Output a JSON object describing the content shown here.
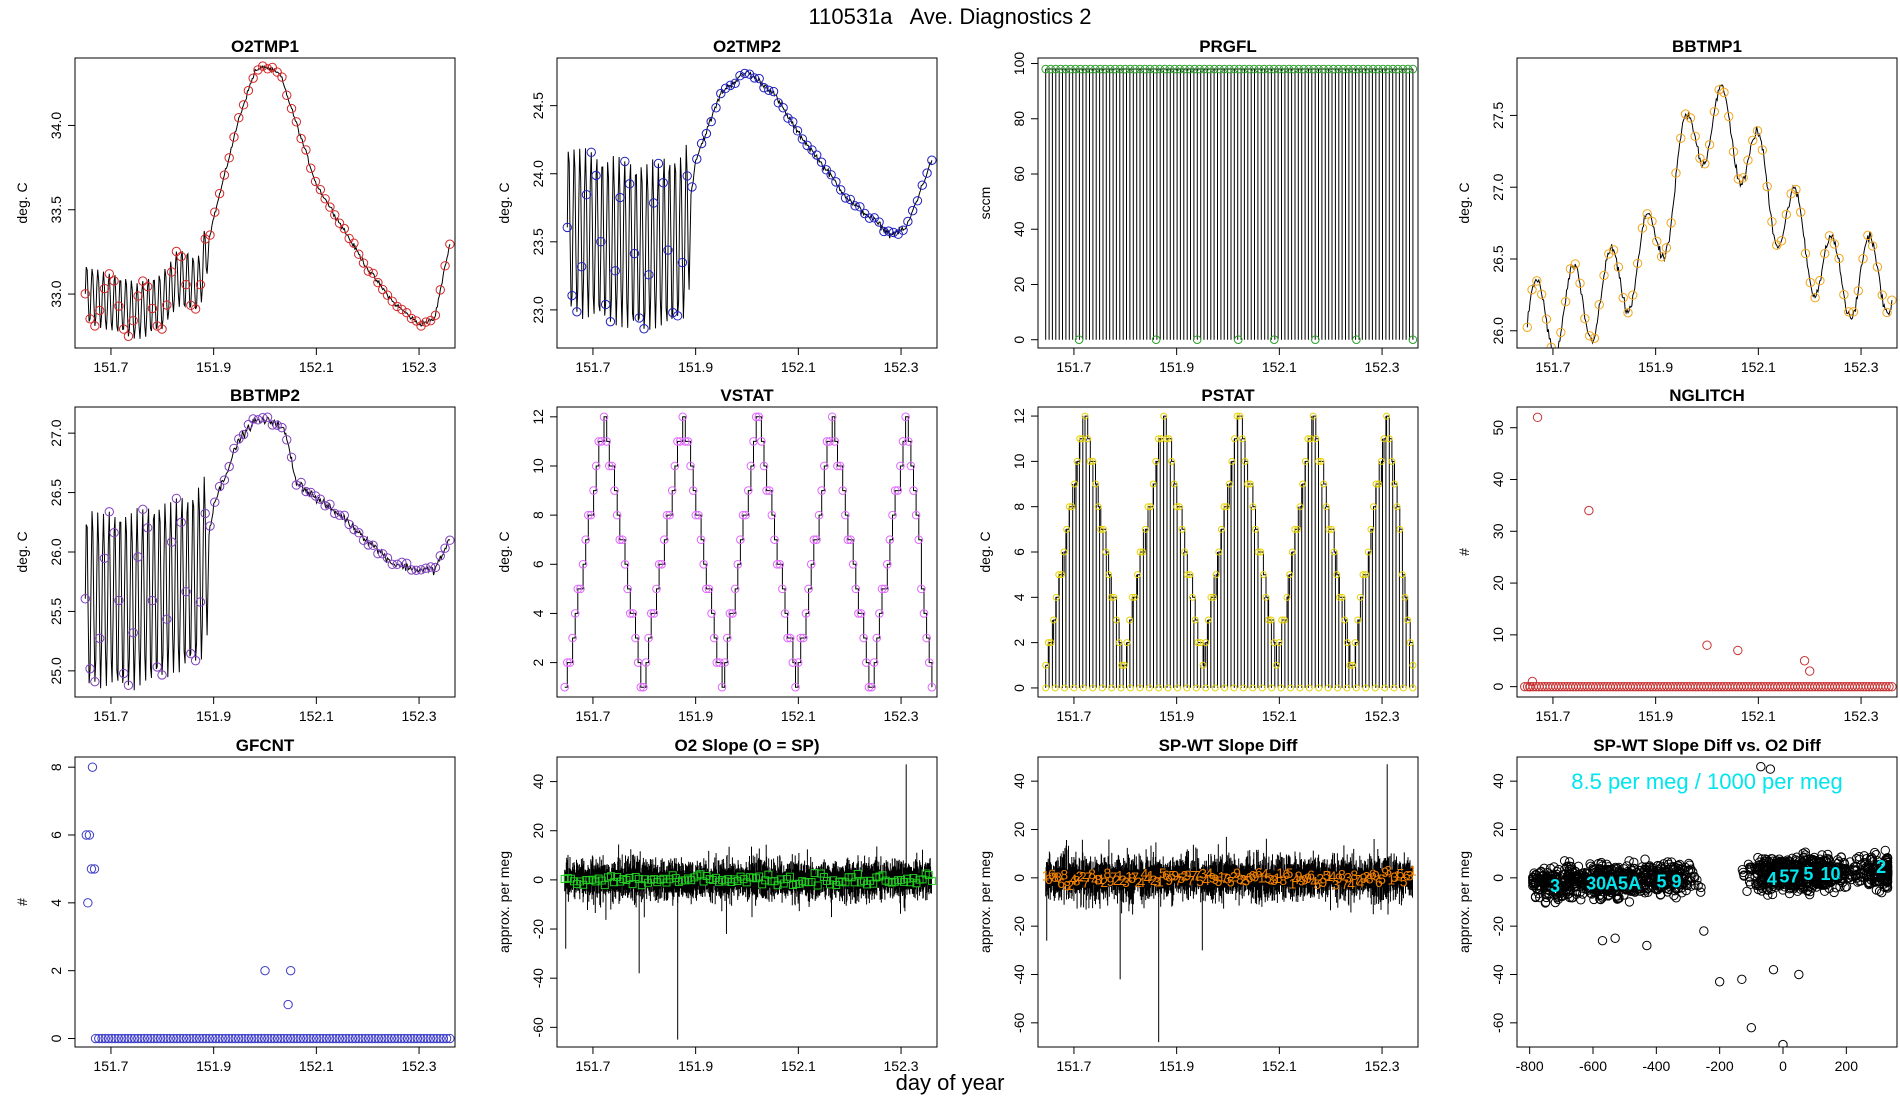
{
  "figure": {
    "title": "110531a   Ave. Diagnostics 2",
    "xlabel": "day of year"
  },
  "chart_data": [
    {
      "type": "line",
      "title": "O2TMP1",
      "ylabel": "deg. C",
      "color": "#d62728",
      "xlim": [
        151.63,
        152.37
      ],
      "ylim": [
        32.68,
        34.4
      ],
      "xticks": [
        "151.7",
        "151.9",
        "152.1",
        "152.3"
      ],
      "yticks": [
        "33.0",
        "33.5",
        "34.0"
      ],
      "series_knots": {
        "x": [
          151.65,
          151.7,
          151.75,
          151.8,
          151.83,
          151.87,
          151.9,
          151.95,
          151.98,
          152.0,
          152.03,
          152.1,
          152.15,
          152.2,
          152.25,
          152.3,
          152.33,
          152.36
        ],
        "y": [
          33.0,
          32.95,
          32.9,
          32.95,
          33.1,
          33.05,
          33.45,
          34.05,
          34.32,
          34.35,
          34.3,
          33.65,
          33.4,
          33.15,
          32.95,
          32.82,
          32.85,
          33.3
        ]
      },
      "osc": {
        "until": 151.89,
        "amp": 0.17,
        "n": 22
      },
      "noise": 0.015
    },
    {
      "type": "line",
      "title": "O2TMP2",
      "ylabel": "deg. C",
      "color": "#1f1fbf",
      "xlim": [
        151.63,
        152.37
      ],
      "ylim": [
        22.72,
        24.85
      ],
      "xticks": [
        "151.7",
        "151.9",
        "152.1",
        "152.3"
      ],
      "yticks": [
        "23.0",
        "23.5",
        "24.0",
        "24.5"
      ],
      "series_knots": {
        "x": [
          151.65,
          151.7,
          151.75,
          151.8,
          151.85,
          151.88,
          151.9,
          151.95,
          152.0,
          152.05,
          152.1,
          152.15,
          152.2,
          152.25,
          152.28,
          152.31,
          152.36
        ],
        "y": [
          23.6,
          23.55,
          23.5,
          23.45,
          23.5,
          23.55,
          24.1,
          24.6,
          24.75,
          24.6,
          24.3,
          24.05,
          23.8,
          23.65,
          23.55,
          23.6,
          24.1
        ]
      },
      "osc": {
        "until": 151.89,
        "amp": 0.62,
        "n": 22
      },
      "noise": 0.02
    },
    {
      "type": "pulse",
      "title": "PRGFL",
      "ylabel": "sccm",
      "color": "#2ca02c",
      "xlim": [
        151.63,
        152.37
      ],
      "ylim": [
        -3,
        102
      ],
      "xticks": [
        "151.7",
        "151.9",
        "152.1",
        "152.3"
      ],
      "yticks": [
        "0",
        "20",
        "40",
        "60",
        "80",
        "100"
      ],
      "high": 98,
      "low": 0,
      "npulses": 110,
      "marker_lows": [
        151.71,
        151.86,
        151.94,
        152.02,
        152.09,
        152.17,
        152.25,
        152.36
      ]
    },
    {
      "type": "line",
      "title": "BBTMP1",
      "ylabel": "deg. C",
      "color": "#f2a51a",
      "xlim": [
        151.63,
        152.37
      ],
      "ylim": [
        25.88,
        27.9
      ],
      "xticks": [
        "151.7",
        "151.9",
        "152.1",
        "152.3"
      ],
      "yticks": [
        "26.0",
        "26.5",
        "27.0",
        "27.5"
      ],
      "series_knots": {
        "x": [
          151.65,
          151.8,
          151.9,
          151.98,
          152.05,
          152.15,
          152.25,
          152.36
        ],
        "y": [
          26.05,
          26.25,
          26.6,
          27.45,
          27.4,
          26.8,
          26.35,
          26.4
        ]
      },
      "osc": {
        "until": 152.37,
        "amp": 0.28,
        "n": 10
      },
      "noise": 0.03
    },
    {
      "type": "line",
      "title": "BBTMP2",
      "ylabel": "deg. C",
      "color": "#7f3fbf",
      "xlim": [
        151.63,
        152.37
      ],
      "ylim": [
        24.78,
        27.22
      ],
      "xticks": [
        "151.7",
        "151.9",
        "152.1",
        "152.3"
      ],
      "yticks": [
        "25.0",
        "25.5",
        "26.0",
        "26.5",
        "27.0"
      ],
      "series_knots": {
        "x": [
          151.65,
          151.75,
          151.85,
          151.88,
          151.9,
          151.95,
          151.98,
          152.02,
          152.04,
          152.06,
          152.1,
          152.15,
          152.2,
          152.25,
          152.3,
          152.33,
          152.36
        ],
        "y": [
          25.6,
          25.6,
          25.75,
          25.85,
          26.4,
          26.95,
          27.1,
          27.1,
          27.0,
          26.6,
          26.45,
          26.3,
          26.1,
          25.9,
          25.85,
          25.85,
          26.1
        ]
      },
      "osc": {
        "until": 151.89,
        "amp": 0.75,
        "n": 22
      },
      "noise": 0.025
    },
    {
      "type": "step",
      "title": "VSTAT",
      "ylabel": "deg. C",
      "color": "#e066ff",
      "xlim": [
        151.63,
        152.37
      ],
      "ylim": [
        0.6,
        12.4
      ],
      "xticks": [
        "151.7",
        "151.9",
        "152.1",
        "152.3"
      ],
      "yticks": [
        "2",
        "4",
        "6",
        "8",
        "10",
        "12"
      ],
      "peaks": [
        151.72,
        151.875,
        152.02,
        152.165,
        152.31
      ],
      "troughs": [
        151.645,
        151.795,
        151.95,
        152.095,
        152.24,
        152.36
      ],
      "max": 12,
      "min": 1
    },
    {
      "type": "step-pulse",
      "title": "PSTAT",
      "ylabel": "deg. C",
      "color": "#e8d200",
      "xlim": [
        151.63,
        152.37
      ],
      "ylim": [
        -0.4,
        12.4
      ],
      "xticks": [
        "151.7",
        "151.9",
        "152.1",
        "152.3"
      ],
      "yticks": [
        "0",
        "2",
        "4",
        "6",
        "8",
        "10",
        "12"
      ],
      "peaks": [
        151.72,
        151.875,
        152.02,
        152.165,
        152.31
      ],
      "troughs": [
        151.645,
        151.795,
        151.95,
        152.095,
        152.24,
        152.36
      ],
      "max": 12,
      "min": 1,
      "npulses": 110
    },
    {
      "type": "scatter",
      "title": "NGLITCH",
      "ylabel": "#",
      "color": "#c83232",
      "xlim": [
        151.63,
        152.37
      ],
      "ylim": [
        -2,
        54
      ],
      "xticks": [
        "151.7",
        "151.9",
        "152.1",
        "152.3"
      ],
      "yticks": [
        "0",
        "10",
        "20",
        "30",
        "40",
        "50"
      ],
      "baseline": 0,
      "x_range": [
        151.645,
        152.36
      ],
      "npoints": 130,
      "points": [
        [
          151.655,
          0
        ],
        [
          151.66,
          1
        ],
        [
          151.67,
          52
        ],
        [
          151.77,
          34
        ],
        [
          152.0,
          8
        ],
        [
          152.06,
          7
        ],
        [
          152.19,
          5
        ],
        [
          152.2,
          3
        ]
      ]
    },
    {
      "type": "scatter",
      "title": "GFCNT",
      "ylabel": "#",
      "color": "#3c3cc8",
      "xlim": [
        151.63,
        152.37
      ],
      "ylim": [
        -0.25,
        8.3
      ],
      "xticks": [
        "151.7",
        "151.9",
        "152.1",
        "152.3"
      ],
      "yticks": [
        "0",
        "2",
        "4",
        "6",
        "8"
      ],
      "baseline": 0,
      "x_range": [
        151.67,
        152.36
      ],
      "npoints": 110,
      "points": [
        [
          151.652,
          6
        ],
        [
          151.655,
          4
        ],
        [
          151.658,
          6
        ],
        [
          151.662,
          5
        ],
        [
          151.664,
          8
        ],
        [
          151.668,
          5
        ],
        [
          152.0,
          2
        ],
        [
          152.045,
          1
        ],
        [
          152.05,
          2
        ]
      ]
    },
    {
      "type": "noise",
      "title": "O2 Slope (O = SP)",
      "ylabel": "approx. per meg",
      "color": "#22cc22",
      "marker": "square",
      "xlim": [
        151.63,
        152.37
      ],
      "ylim": [
        -68,
        50
      ],
      "xticks": [
        "151.7",
        "151.9",
        "152.1",
        "152.3"
      ],
      "yticks": [
        "-60",
        "-40",
        "-20",
        "0",
        "20",
        "40"
      ],
      "spread": 6,
      "spikes": [
        [
          151.647,
          -28
        ],
        [
          151.79,
          -38
        ],
        [
          151.865,
          -65
        ],
        [
          151.96,
          -22
        ],
        [
          152.31,
          47
        ]
      ]
    },
    {
      "type": "noise",
      "title": "SP-WT Slope Diff",
      "ylabel": "approx. per meg",
      "color": "#f08000",
      "marker": "digit",
      "xlim": [
        151.63,
        152.37
      ],
      "ylim": [
        -70,
        50
      ],
      "xticks": [
        "151.7",
        "151.9",
        "152.1",
        "152.3"
      ],
      "yticks": [
        "-60",
        "-40",
        "-20",
        "0",
        "20",
        "40"
      ],
      "spread": 7,
      "spikes": [
        [
          151.647,
          -26
        ],
        [
          151.79,
          -42
        ],
        [
          151.865,
          -68
        ],
        [
          151.95,
          -30
        ],
        [
          152.31,
          47
        ]
      ]
    },
    {
      "type": "scatter-cloud",
      "title": "SP-WT Slope Diff vs. O2 Diff",
      "ylabel": "approx. per meg",
      "color": "#000000",
      "label_color": "#00e5ee",
      "xlim": [
        -840,
        360
      ],
      "ylim": [
        -70,
        50
      ],
      "xticks": [
        "-800",
        "-600",
        "-400",
        "-200",
        "0",
        "200"
      ],
      "yticks": [
        "-60",
        "-40",
        "-20",
        "0",
        "20",
        "40"
      ],
      "annotation": "8.5 per meg / 1000 per meg",
      "group_labels": [
        [
          "3",
          -720,
          -3
        ],
        [
          "30",
          -590,
          -2
        ],
        [
          "A5A",
          -505,
          -2
        ],
        [
          "5 9",
          -360,
          -1
        ],
        [
          "4",
          -35,
          0
        ],
        [
          "57",
          20,
          1
        ],
        [
          "5",
          80,
          2
        ],
        [
          "10",
          150,
          2
        ],
        [
          "2",
          310,
          5
        ]
      ],
      "outliers": [
        [
          -100,
          -62
        ],
        [
          -70,
          46
        ],
        [
          -40,
          45
        ],
        [
          -200,
          -43
        ],
        [
          -130,
          -42
        ],
        [
          0,
          -69
        ],
        [
          50,
          -40
        ],
        [
          -30,
          -38
        ],
        [
          -430,
          -28
        ],
        [
          -250,
          -22
        ],
        [
          -530,
          -25
        ],
        [
          -570,
          -26
        ]
      ]
    }
  ]
}
